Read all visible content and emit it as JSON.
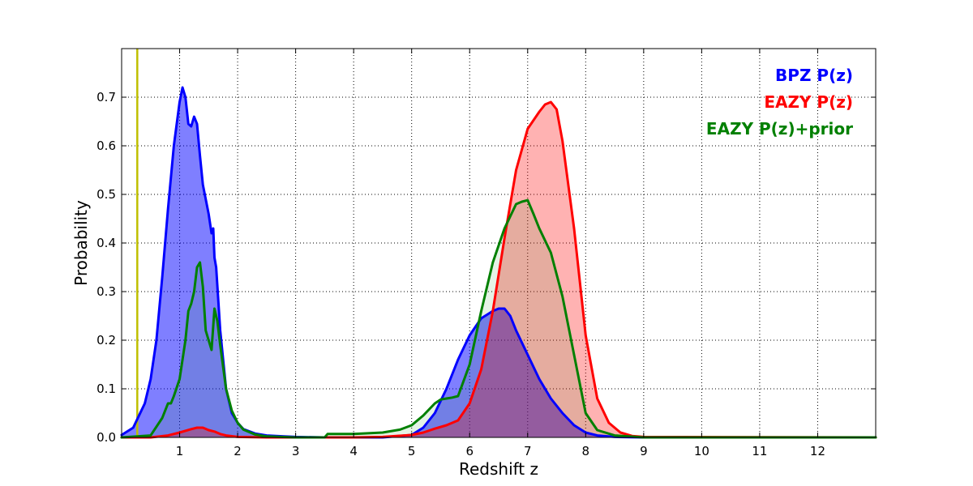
{
  "chart_data": {
    "type": "area",
    "xlabel": "Redshift z",
    "ylabel": "Probability",
    "xlim": [
      0,
      13
    ],
    "ylim": [
      0,
      0.8
    ],
    "grid": true,
    "legend_position": "top-right",
    "xticks": [
      1,
      2,
      3,
      4,
      5,
      6,
      7,
      8,
      9,
      10,
      11,
      12
    ],
    "yticks": [
      0.0,
      0.1,
      0.2,
      0.3,
      0.4,
      0.5,
      0.6,
      0.7
    ],
    "ytick_labels": [
      "0.0",
      "0.1",
      "0.2",
      "0.3",
      "0.4",
      "0.5",
      "0.6",
      "0.7"
    ],
    "vline": {
      "x": 0.27,
      "color": "#bfbf00"
    },
    "series": [
      {
        "name": "BPZ P(z)",
        "color": "#0000ff",
        "fill": "#0000ff",
        "fill_opacity": 0.5,
        "x": [
          0.0,
          0.2,
          0.4,
          0.5,
          0.6,
          0.7,
          0.8,
          0.9,
          1.0,
          1.05,
          1.1,
          1.15,
          1.2,
          1.25,
          1.3,
          1.35,
          1.4,
          1.5,
          1.55,
          1.58,
          1.6,
          1.63,
          1.7,
          1.8,
          1.9,
          2.0,
          2.1,
          2.3,
          2.5,
          2.8,
          3.0,
          3.5,
          4.0,
          4.5,
          5.0,
          5.2,
          5.4,
          5.6,
          5.8,
          6.0,
          6.2,
          6.4,
          6.5,
          6.6,
          6.7,
          6.8,
          7.0,
          7.2,
          7.4,
          7.6,
          7.8,
          8.0,
          8.2,
          8.5,
          9.0,
          13.0
        ],
        "y": [
          0.005,
          0.02,
          0.07,
          0.12,
          0.2,
          0.33,
          0.47,
          0.6,
          0.69,
          0.72,
          0.7,
          0.645,
          0.64,
          0.66,
          0.645,
          0.58,
          0.52,
          0.46,
          0.42,
          0.43,
          0.37,
          0.35,
          0.22,
          0.1,
          0.05,
          0.03,
          0.017,
          0.008,
          0.004,
          0.002,
          0.001,
          0.0,
          0.0,
          0.0,
          0.005,
          0.02,
          0.05,
          0.1,
          0.16,
          0.21,
          0.245,
          0.26,
          0.265,
          0.265,
          0.25,
          0.22,
          0.17,
          0.12,
          0.08,
          0.05,
          0.025,
          0.01,
          0.004,
          0.001,
          0.0,
          0.0
        ]
      },
      {
        "name": "EAZY P(z)",
        "color": "#ff0000",
        "fill": "#ff0000",
        "fill_opacity": 0.3,
        "x": [
          0.0,
          0.5,
          0.8,
          1.0,
          1.2,
          1.3,
          1.4,
          1.5,
          1.6,
          1.7,
          1.8,
          2.0,
          2.5,
          3.0,
          4.0,
          4.5,
          5.0,
          5.2,
          5.4,
          5.6,
          5.8,
          6.0,
          6.2,
          6.4,
          6.6,
          6.8,
          7.0,
          7.2,
          7.3,
          7.4,
          7.5,
          7.6,
          7.8,
          8.0,
          8.2,
          8.4,
          8.6,
          8.8,
          9.0,
          13.0
        ],
        "y": [
          0.0,
          0.0,
          0.004,
          0.01,
          0.017,
          0.02,
          0.02,
          0.015,
          0.012,
          0.007,
          0.004,
          0.001,
          0.0,
          0.0,
          0.0,
          0.001,
          0.005,
          0.01,
          0.018,
          0.025,
          0.035,
          0.07,
          0.14,
          0.26,
          0.41,
          0.55,
          0.635,
          0.67,
          0.685,
          0.69,
          0.675,
          0.61,
          0.43,
          0.21,
          0.08,
          0.03,
          0.01,
          0.003,
          0.001,
          0.0
        ]
      },
      {
        "name": "EAZY P(z)+prior",
        "color": "#008000",
        "fill": "#008000",
        "fill_opacity": 0.1,
        "x": [
          0.0,
          0.5,
          0.7,
          0.8,
          0.85,
          0.9,
          1.0,
          1.1,
          1.15,
          1.2,
          1.25,
          1.3,
          1.35,
          1.4,
          1.45,
          1.5,
          1.55,
          1.6,
          1.65,
          1.7,
          1.8,
          1.9,
          2.0,
          2.1,
          2.3,
          2.5,
          3.0,
          3.5,
          3.55,
          4.0,
          4.5,
          4.8,
          5.0,
          5.2,
          5.4,
          5.5,
          5.6,
          5.7,
          5.8,
          6.0,
          6.2,
          6.4,
          6.6,
          6.8,
          6.9,
          7.0,
          7.1,
          7.2,
          7.4,
          7.6,
          7.8,
          8.0,
          8.2,
          8.5,
          9.0,
          13.0
        ],
        "y": [
          0.0,
          0.004,
          0.04,
          0.07,
          0.07,
          0.085,
          0.12,
          0.2,
          0.26,
          0.275,
          0.3,
          0.35,
          0.36,
          0.31,
          0.22,
          0.2,
          0.18,
          0.265,
          0.24,
          0.19,
          0.1,
          0.055,
          0.03,
          0.016,
          0.006,
          0.002,
          0.0,
          0.0,
          0.007,
          0.007,
          0.01,
          0.016,
          0.025,
          0.045,
          0.07,
          0.078,
          0.08,
          0.082,
          0.085,
          0.15,
          0.26,
          0.36,
          0.43,
          0.48,
          0.485,
          0.488,
          0.46,
          0.43,
          0.38,
          0.29,
          0.17,
          0.05,
          0.015,
          0.004,
          0.0,
          0.0
        ]
      }
    ]
  }
}
